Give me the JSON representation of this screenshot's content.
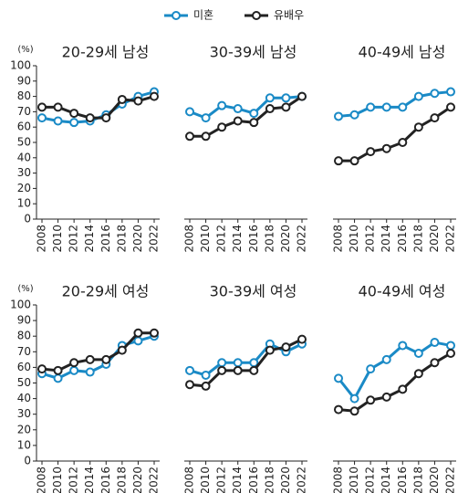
{
  "chart_data": [
    {
      "type": "line",
      "title": "20-29세 남성",
      "ylabel": "(%)",
      "categories": [
        "2008",
        "2010",
        "2012",
        "2014",
        "2016",
        "2018",
        "2020",
        "2022"
      ],
      "ylim": [
        0,
        100
      ],
      "yticks": [
        0,
        10,
        20,
        30,
        40,
        50,
        60,
        70,
        80,
        90,
        100
      ],
      "series": [
        {
          "name": "미혼",
          "color": "#1a8ac6",
          "values": [
            66,
            64,
            63,
            64,
            68,
            75,
            80,
            83
          ]
        },
        {
          "name": "유배우",
          "color": "#222222",
          "values": [
            73,
            73,
            69,
            66,
            66,
            78,
            77,
            80
          ]
        }
      ]
    },
    {
      "type": "line",
      "title": "30-39세 남성",
      "categories": [
        "2008",
        "2010",
        "2012",
        "2014",
        "2016",
        "2018",
        "2020",
        "2022"
      ],
      "ylim": [
        0,
        100
      ],
      "series": [
        {
          "color": "#1a8ac6",
          "values": [
            70,
            66,
            74,
            72,
            69,
            79,
            79,
            80
          ]
        },
        {
          "color": "#222222",
          "values": [
            54,
            54,
            60,
            64,
            63,
            72,
            73,
            80
          ]
        }
      ]
    },
    {
      "type": "line",
      "title": "40-49세 남성",
      "categories": [
        "2008",
        "2010",
        "2012",
        "2014",
        "2016",
        "2018",
        "2020",
        "2022"
      ],
      "ylim": [
        0,
        100
      ],
      "series": [
        {
          "color": "#1a8ac6",
          "values": [
            67,
            68,
            73,
            73,
            73,
            80,
            82,
            83
          ]
        },
        {
          "color": "#222222",
          "values": [
            38,
            38,
            44,
            46,
            50,
            60,
            66,
            73
          ]
        }
      ]
    },
    {
      "type": "line",
      "title": "20-29세 여성",
      "ylabel": "(%)",
      "categories": [
        "2008",
        "2010",
        "2012",
        "2014",
        "2016",
        "2018",
        "2020",
        "2022"
      ],
      "ylim": [
        0,
        100
      ],
      "yticks": [
        0,
        10,
        20,
        30,
        40,
        50,
        60,
        70,
        80,
        90,
        100
      ],
      "series": [
        {
          "color": "#1a8ac6",
          "values": [
            56,
            53,
            58,
            57,
            62,
            74,
            77,
            80
          ]
        },
        {
          "color": "#222222",
          "values": [
            59,
            58,
            63,
            65,
            65,
            71,
            82,
            82
          ]
        }
      ]
    },
    {
      "type": "line",
      "title": "30-39세 여성",
      "categories": [
        "2008",
        "2010",
        "2012",
        "2014",
        "2016",
        "2018",
        "2020",
        "2022"
      ],
      "ylim": [
        0,
        100
      ],
      "series": [
        {
          "color": "#1a8ac6",
          "values": [
            58,
            55,
            63,
            63,
            63,
            75,
            70,
            75
          ]
        },
        {
          "color": "#222222",
          "values": [
            49,
            48,
            58,
            58,
            58,
            71,
            73,
            78
          ]
        }
      ]
    },
    {
      "type": "line",
      "title": "40-49세 여성",
      "categories": [
        "2008",
        "2010",
        "2012",
        "2014",
        "2016",
        "2018",
        "2020",
        "2022"
      ],
      "ylim": [
        0,
        100
      ],
      "series": [
        {
          "color": "#1a8ac6",
          "values": [
            53,
            40,
            59,
            65,
            74,
            69,
            76,
            74
          ]
        },
        {
          "color": "#222222",
          "values": [
            33,
            32,
            39,
            41,
            46,
            56,
            63,
            69
          ]
        }
      ]
    }
  ]
}
